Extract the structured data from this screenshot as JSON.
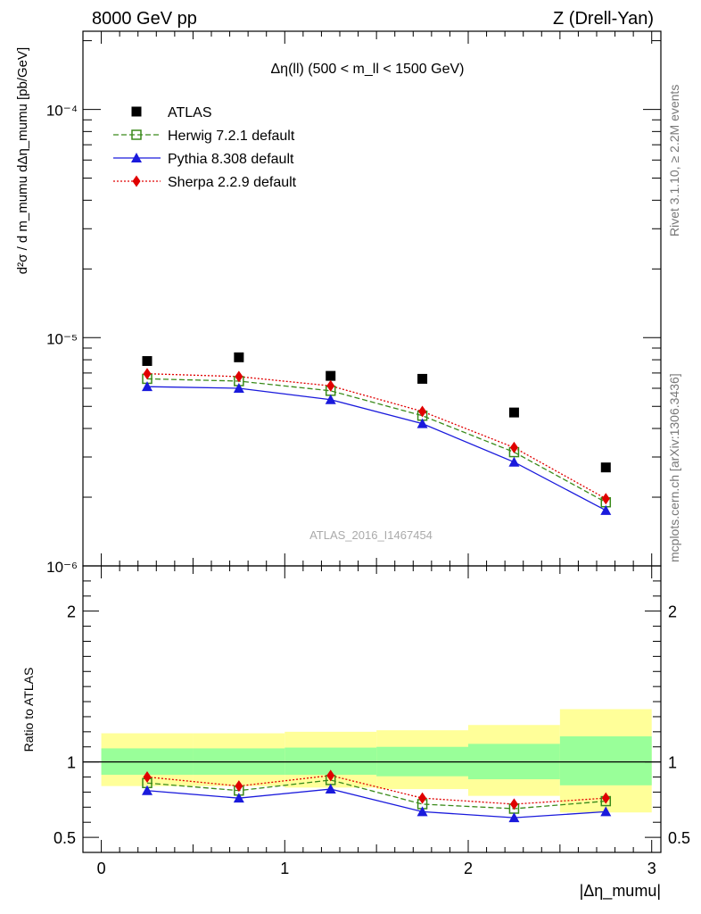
{
  "header": {
    "left": "8000 GeV pp",
    "right": "Z (Drell-Yan)"
  },
  "side_labels": {
    "rivet": "Rivet 3.1.10, ≥ 2.2M events",
    "mcplots": "mcplots.cern.ch [arXiv:1306.3436]"
  },
  "chart_data": {
    "type": "scatter",
    "title": "Δη(ll) (500 < m_ll < 1500 GeV)",
    "watermark": "ATLAS_2016_I1467454",
    "xlabel": "|Δη_mumu|",
    "ylabel": "d²σ / d m_mumu dΔη_mumu [pb/GeV]",
    "ratio_ylabel": "Ratio to ATLAS",
    "xlim": [
      -0.1,
      3.05
    ],
    "ylim": [
      1e-06,
      0.00022
    ],
    "ylog": true,
    "ratio_ylim": [
      0.4,
      2.3
    ],
    "x_ticks": [
      "0",
      "1",
      "2",
      "3"
    ],
    "y_ticks": [
      "10⁻⁶",
      "10⁻⁵",
      "10⁻⁴"
    ],
    "ratio_ticks": [
      "0.5",
      "1",
      "2"
    ],
    "legend_position": "top-left",
    "x": [
      0.25,
      0.75,
      1.25,
      1.75,
      2.25,
      2.75
    ],
    "bin_edges": [
      0,
      0.5,
      1.0,
      1.5,
      2.0,
      2.5,
      3.0
    ],
    "series": [
      {
        "name": "ATLAS",
        "color": "#000000",
        "marker": "square",
        "values": [
          7.9e-06,
          8.2e-06,
          6.8e-06,
          6.6e-06,
          4.7e-06,
          2.7e-06
        ]
      },
      {
        "name": "Herwig 7.2.1 default",
        "color": "#3a8a1a",
        "marker": "open-square",
        "dash": "6,3",
        "values": [
          6.6e-06,
          6.45e-06,
          5.85e-06,
          4.55e-06,
          3.15e-06,
          1.9e-06
        ]
      },
      {
        "name": "Pythia 8.308 default",
        "color": "#1a1adc",
        "marker": "triangle",
        "dash": "",
        "values": [
          6.1e-06,
          6e-06,
          5.35e-06,
          4.2e-06,
          2.85e-06,
          1.75e-06
        ]
      },
      {
        "name": "Sherpa 2.2.9 default",
        "color": "#e00000",
        "marker": "diamond",
        "dash": "2,2",
        "values": [
          6.95e-06,
          6.75e-06,
          6.15e-06,
          4.75e-06,
          3.3e-06,
          1.97e-06
        ]
      }
    ],
    "ratio": {
      "Herwig 7.2.1 default": [
        0.86,
        0.81,
        0.88,
        0.72,
        0.69,
        0.74
      ],
      "Pythia 8.308 default": [
        0.81,
        0.76,
        0.82,
        0.67,
        0.63,
        0.67
      ],
      "Sherpa 2.2.9 default": [
        0.9,
        0.84,
        0.91,
        0.76,
        0.72,
        0.76
      ]
    },
    "uncertainty_bands": {
      "stat": [
        [
          0.915,
          1.09
        ],
        [
          0.915,
          1.09
        ],
        [
          0.915,
          1.095
        ],
        [
          0.905,
          1.1
        ],
        [
          0.885,
          1.12
        ],
        [
          0.845,
          1.17
        ]
      ],
      "total": [
        [
          0.84,
          1.19
        ],
        [
          0.84,
          1.19
        ],
        [
          0.83,
          1.2
        ],
        [
          0.82,
          1.21
        ],
        [
          0.775,
          1.245
        ],
        [
          0.665,
          1.35
        ]
      ]
    }
  },
  "colors": {
    "band_total": "#ffff99",
    "band_stat": "#99ff99"
  }
}
